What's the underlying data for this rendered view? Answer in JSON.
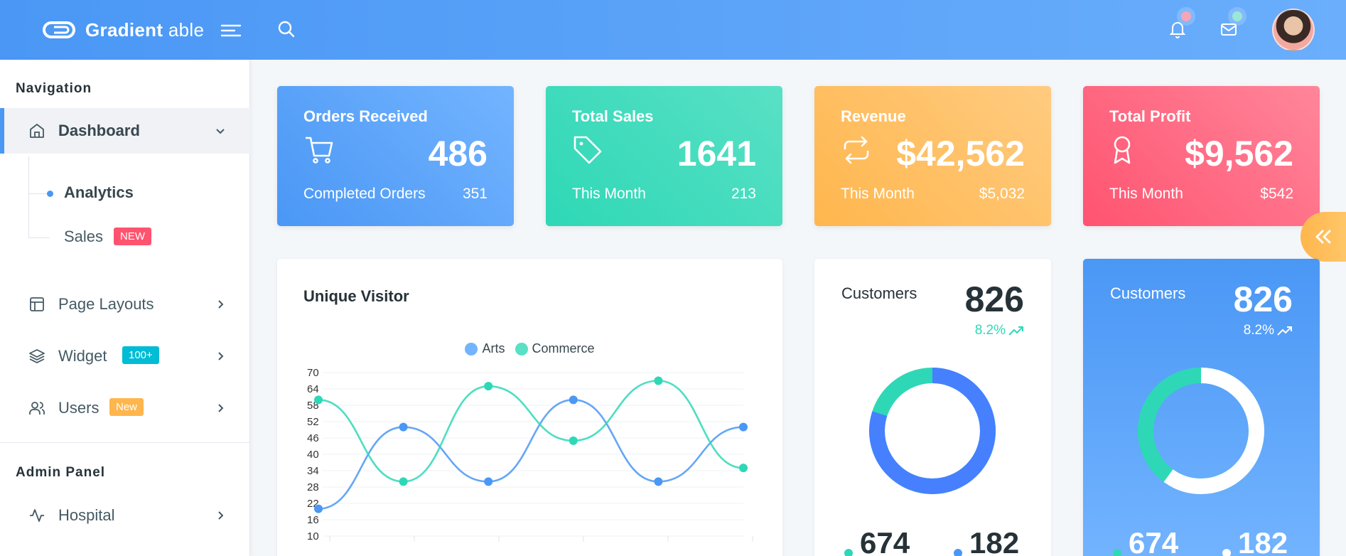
{
  "header": {
    "brand_bold": "Gradient",
    "brand_thin": "able",
    "icons": [
      "logo-icon",
      "menu-icon",
      "search-icon",
      "bell-icon",
      "mail-icon",
      "user-avatar"
    ]
  },
  "sidebar": {
    "nav_caption": "Navigation",
    "dashboard": {
      "label": "Dashboard",
      "icon": "home-icon"
    },
    "sub_items": [
      {
        "label": "Analytics"
      },
      {
        "label": "Sales",
        "badge": "NEW",
        "badge_color": "#ff5370"
      }
    ],
    "items": [
      {
        "label": "Page Layouts",
        "icon": "layout-icon"
      },
      {
        "label": "Widget",
        "icon": "layers-icon",
        "badge": "100+",
        "badge_color": "#00bcd4"
      },
      {
        "label": "Users",
        "icon": "users-icon",
        "badge": "New",
        "badge_color": "#ffb64d"
      }
    ],
    "admin_caption": "Admin Panel",
    "admin_items": [
      {
        "label": "Hospital",
        "icon": "activity-icon"
      }
    ]
  },
  "stats": [
    {
      "title": "Orders Received",
      "value": "486",
      "sub_label": "Completed Orders",
      "sub_value": "351",
      "icon": "cart-icon",
      "gradient": [
        "#4a97f5",
        "#73b4ff"
      ]
    },
    {
      "title": "Total Sales",
      "value": "1641",
      "sub_label": "This Month",
      "sub_value": "213",
      "icon": "tag-icon",
      "gradient": [
        "#2ed8b6",
        "#59e0c5"
      ]
    },
    {
      "title": "Revenue",
      "value": "$42,562",
      "sub_label": "This Month",
      "sub_value": "$5,032",
      "icon": "repeat-icon",
      "gradient": [
        "#ffb64d",
        "#ffcb80"
      ]
    },
    {
      "title": "Total Profit",
      "value": "$9,562",
      "sub_label": "This Month",
      "sub_value": "$542",
      "icon": "award-icon",
      "gradient": [
        "#ff5370",
        "#ff869a"
      ]
    }
  ],
  "visitor": {
    "title": "Unique Visitor",
    "legend": [
      {
        "name": "Arts",
        "color": "#73b4ff"
      },
      {
        "name": "Commerce",
        "color": "#59e0c5"
      }
    ]
  },
  "chart_data": {
    "type": "line",
    "x": [
      1,
      2,
      3,
      4,
      5,
      6
    ],
    "series": [
      {
        "name": "Arts",
        "values": [
          20,
          50,
          30,
          60,
          30,
          50
        ],
        "color": "#4a97f5"
      },
      {
        "name": "Commerce",
        "values": [
          60,
          30,
          65,
          45,
          67,
          35
        ],
        "color": "#2ed8b6"
      }
    ],
    "yticks": [
      "70",
      "64",
      "58",
      "52",
      "46",
      "40",
      "34",
      "28",
      "22",
      "16",
      "10"
    ],
    "ylim": [
      10,
      70
    ],
    "smooth": true,
    "grid": true,
    "legend_position": "top-center"
  },
  "customers_light": {
    "label": "Customers",
    "value": "826",
    "pct": "8.2%",
    "pct_color": "#2ed8b6",
    "donut_fraction": 0.8,
    "b1": "674",
    "b2": "182",
    "b1_dot": "#2ed8b6",
    "b2_dot": "#4a97f5"
  },
  "customers_blue": {
    "label": "Customers",
    "value": "826",
    "pct": "8.2%",
    "donut_fraction": 0.6,
    "b1": "674",
    "b2": "182",
    "b1_dot": "#2ed8b6",
    "b2_dot": "#ffffff"
  }
}
